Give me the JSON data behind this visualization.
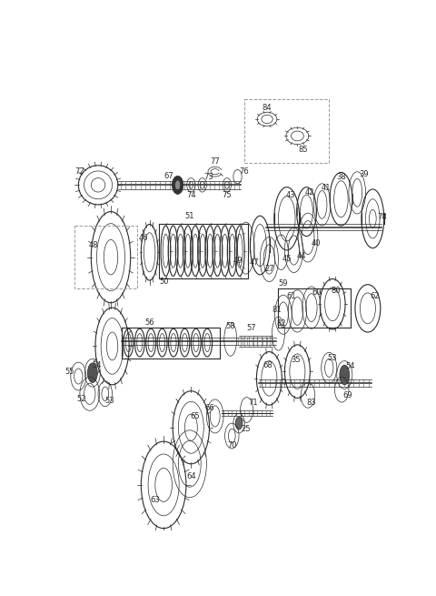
{
  "bg_color": "#ffffff",
  "line_color": "#2a2a2a",
  "figsize": [
    4.8,
    6.55
  ],
  "dpi": 100,
  "lw_thin": 0.5,
  "lw_med": 0.8,
  "lw_thick": 1.1,
  "font_size": 6.0
}
